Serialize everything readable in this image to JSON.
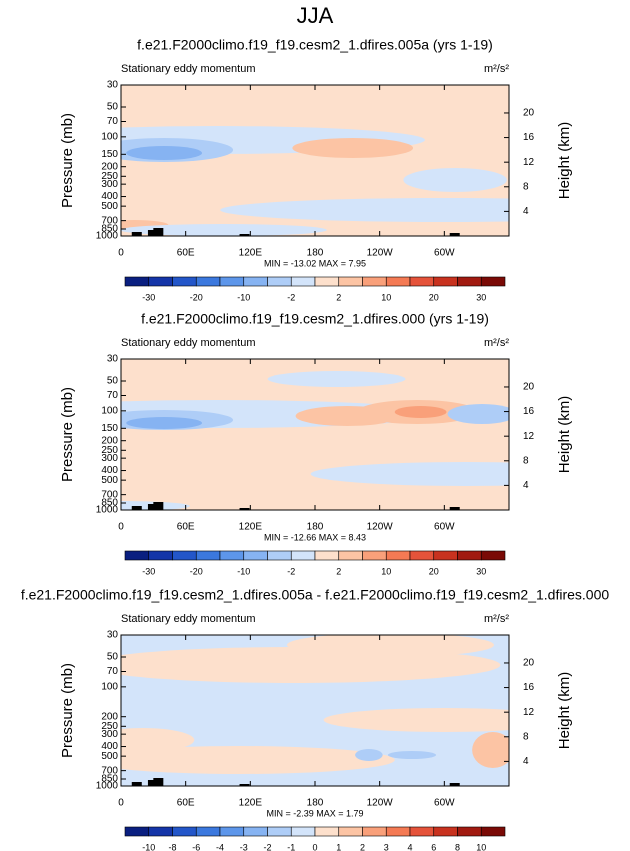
{
  "title": "JJA",
  "panels": [
    {
      "title": "f.e21.F2000climo.f19_f19.cesm2_1.dfires.005a (yrs 1-19)",
      "subtitle": "Stationary eddy momentum",
      "units": "m²/s²",
      "y_label": "Pressure (mb)",
      "y2_label": "Height (km)",
      "xlim": [
        0,
        360
      ],
      "xticks": [
        0,
        {
          "value": 60,
          "label": "60E"
        },
        {
          "value": 120,
          "label": "120E"
        },
        180,
        {
          "value": 240,
          "label": "120W"
        },
        {
          "value": 300,
          "label": "60W"
        }
      ],
      "ylim": [
        1000,
        30
      ],
      "log_y": true,
      "yticks": [
        30,
        50,
        70,
        100,
        150,
        200,
        250,
        300,
        400,
        500,
        700,
        850,
        1000
      ],
      "y2ticks": [
        4,
        8,
        12,
        16,
        20
      ],
      "stats": "MIN = -13.02   MAX =   7.95",
      "colorbar": {
        "colors": [
          "#0a1f80",
          "#1435a8",
          "#2356c9",
          "#3b78de",
          "#5d96ea",
          "#86b3f2",
          "#aecdf7",
          "#d3e4fa",
          "#fde0cc",
          "#fcc4a4",
          "#f9a07a",
          "#f47a54",
          "#e5533a",
          "#c8321f",
          "#a11a10",
          "#7a0a06"
        ],
        "labels": [
          -30,
          -20,
          -10,
          -2,
          2,
          10,
          20,
          30
        ]
      }
    },
    {
      "title": "f.e21.F2000climo.f19_f19.cesm2_1.dfires.000 (yrs 1-19)",
      "subtitle": "Stationary eddy momentum",
      "units": "m²/s²",
      "y_label": "Pressure (mb)",
      "y2_label": "Height (km)",
      "xlim": [
        0,
        360
      ],
      "xticks": [
        0,
        {
          "value": 60,
          "label": "60E"
        },
        {
          "value": 120,
          "label": "120E"
        },
        180,
        {
          "value": 240,
          "label": "120W"
        },
        {
          "value": 300,
          "label": "60W"
        }
      ],
      "ylim": [
        1000,
        30
      ],
      "log_y": true,
      "yticks": [
        30,
        50,
        70,
        100,
        150,
        200,
        250,
        300,
        400,
        500,
        700,
        850,
        1000
      ],
      "y2ticks": [
        4,
        8,
        12,
        16,
        20
      ],
      "stats": "MIN = -12.66   MAX =   8.43",
      "colorbar": {
        "colors": [
          "#0a1f80",
          "#1435a8",
          "#2356c9",
          "#3b78de",
          "#5d96ea",
          "#86b3f2",
          "#aecdf7",
          "#d3e4fa",
          "#fde0cc",
          "#fcc4a4",
          "#f9a07a",
          "#f47a54",
          "#e5533a",
          "#c8321f",
          "#a11a10",
          "#7a0a06"
        ],
        "labels": [
          -30,
          -20,
          -10,
          -2,
          2,
          10,
          20,
          30
        ]
      }
    },
    {
      "title": "f.e21.F2000climo.f19_f19.cesm2_1.dfires.005a - f.e21.F2000climo.f19_f19.cesm2_1.dfires.000",
      "subtitle": "Stationary eddy momentum",
      "units": "m²/s²",
      "y_label": "Pressure (mb)",
      "y2_label": "Height (km)",
      "xlim": [
        0,
        360
      ],
      "xticks": [
        0,
        {
          "value": 60,
          "label": "60E"
        },
        {
          "value": 120,
          "label": "120E"
        },
        180,
        {
          "value": 240,
          "label": "120W"
        },
        {
          "value": 300,
          "label": "60W"
        }
      ],
      "ylim": [
        1000,
        30
      ],
      "log_y": true,
      "yticks": [
        30,
        50,
        70,
        100,
        200,
        250,
        300,
        400,
        500,
        700,
        850,
        1000
      ],
      "y2ticks": [
        4,
        8,
        12,
        16,
        20
      ],
      "stats": "MIN = -2.39   MAX =   1.79",
      "colorbar": {
        "colors": [
          "#0a1f80",
          "#1435a8",
          "#2356c9",
          "#3b78de",
          "#5d96ea",
          "#86b3f2",
          "#aecdf7",
          "#d3e4fa",
          "#fde0cc",
          "#fcc4a4",
          "#f9a07a",
          "#f47a54",
          "#e5533a",
          "#c8321f",
          "#a11a10",
          "#7a0a06"
        ],
        "labels": [
          -10,
          -8,
          -6,
          -4,
          -3,
          -2,
          -1,
          0,
          1,
          2,
          3,
          4,
          6,
          8,
          10
        ]
      }
    }
  ]
}
